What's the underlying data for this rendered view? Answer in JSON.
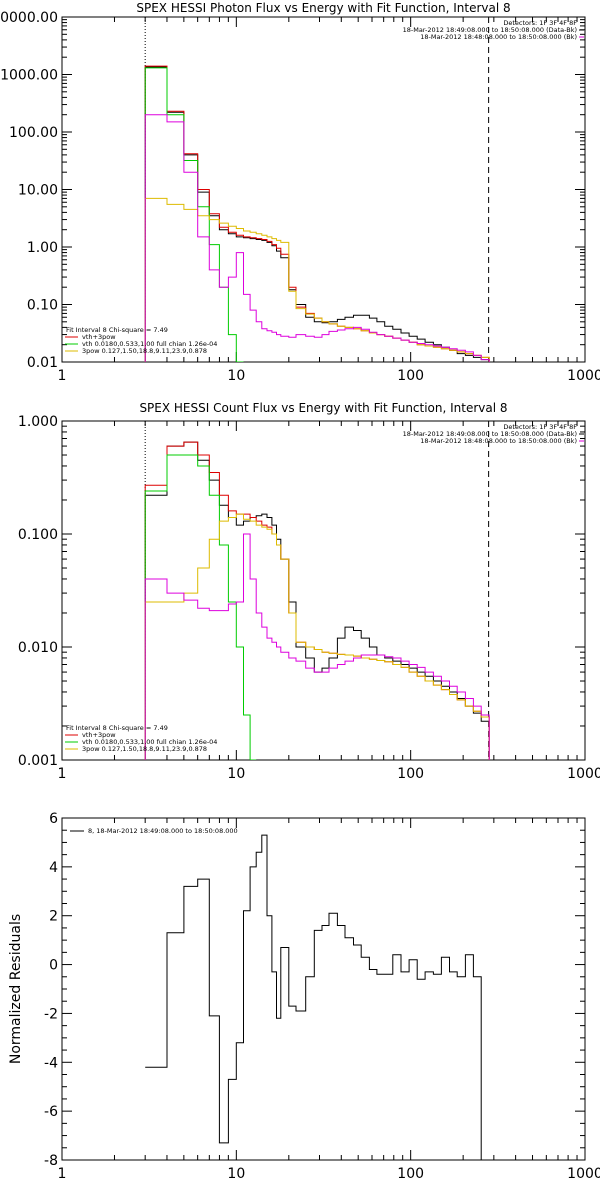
{
  "chart_data": [
    {
      "type": "line",
      "title": "SPEX HESSI Photon Flux vs Energy with Fit Function, Interval 8",
      "xlabel": "",
      "ylabel": "",
      "xscale": "log",
      "yscale": "log",
      "xlim": [
        1,
        1000
      ],
      "ylim": [
        0.01,
        10000
      ],
      "x_ticks": [
        1,
        10,
        100,
        1000
      ],
      "x_tick_labels": [
        "1",
        "10",
        "100",
        "1000"
      ],
      "y_ticks": [
        0.01,
        0.1,
        1,
        10,
        100,
        1000,
        10000
      ],
      "y_tick_labels": [
        "0.01",
        "0.10",
        "1.00",
        "10.00",
        "100.00",
        "1000.00",
        "10000.00"
      ],
      "vlines": [
        {
          "x": 3,
          "style": "dotted"
        },
        {
          "x": 280,
          "style": "dashed"
        }
      ],
      "info_lines": [
        "Detectors: 1F 3F 4F 8F",
        "18-Mar-2012 18:49:08.000 to 18:50:08.000 (Data-Bk)",
        "18-Mar-2012 18:48:08.000 to 18:50:08.000 (Bk)"
      ],
      "fit_lines": [
        "Fit Interval 8   Chi-square = 7.49",
        "vth+3pow",
        "vth 0.0180,0.533,1.00  full chian 1.26e-04",
        "3pow 0.127,1.50,18.8,9.11,23.9,0.878"
      ],
      "edges": [
        3,
        4,
        5,
        6,
        7,
        8,
        9,
        10,
        11,
        12,
        13,
        14,
        15,
        16,
        17,
        18,
        20,
        22,
        25,
        28,
        31,
        34,
        38,
        42,
        47,
        52,
        58,
        64,
        71,
        79,
        88,
        98,
        109,
        121,
        135,
        150,
        167,
        185,
        206,
        229,
        254,
        282
      ],
      "series": [
        {
          "name": "Data-Bk",
          "color": "#000000",
          "values": [
            1350,
            220,
            40,
            9,
            3.5,
            2.0,
            1.7,
            1.5,
            1.45,
            1.4,
            1.35,
            1.3,
            1.2,
            1.05,
            0.85,
            0.65,
            0.18,
            0.1,
            0.06,
            0.05,
            0.048,
            0.05,
            0.055,
            0.06,
            0.065,
            0.065,
            0.058,
            0.05,
            0.042,
            0.037,
            0.032,
            0.028,
            0.025,
            0.022,
            0.02,
            0.018,
            0.016,
            0.014,
            0.013,
            0.012,
            0.011
          ]
        },
        {
          "name": "vth+3pow",
          "color": "#dd0000",
          "values": [
            1400,
            230,
            42,
            10,
            3.8,
            2.2,
            1.8,
            1.6,
            1.5,
            1.45,
            1.4,
            1.35,
            1.25,
            1.1,
            0.95,
            0.75,
            0.2,
            0.09,
            0.07,
            0.058,
            0.05,
            0.046,
            0.042,
            0.04,
            0.038,
            0.035,
            0.032,
            0.03,
            0.028,
            0.026,
            0.024,
            0.022,
            0.02,
            0.019,
            0.018,
            0.017,
            0.016,
            0.015,
            0.014,
            0.013,
            0.012
          ]
        },
        {
          "name": "vth",
          "color": "#00cc00",
          "values": [
            1300,
            200,
            32,
            5,
            1.1,
            0.2,
            0.03,
            0.005
          ]
        },
        {
          "name": "3pow",
          "color": "#ddbb00",
          "values": [
            7,
            5.5,
            4.5,
            3.5,
            3.0,
            2.6,
            2.3,
            2.1,
            1.9,
            1.8,
            1.7,
            1.6,
            1.5,
            1.4,
            1.3,
            1.2,
            0.17,
            0.085,
            0.068,
            0.058,
            0.05,
            0.046,
            0.042,
            0.04,
            0.038,
            0.035,
            0.032,
            0.03,
            0.028,
            0.026,
            0.024,
            0.022,
            0.02,
            0.019,
            0.018,
            0.017,
            0.016,
            0.015,
            0.014,
            0.013,
            0.012
          ]
        },
        {
          "name": "Bk",
          "color": "#dd00dd",
          "values": [
            200,
            150,
            20,
            1.5,
            0.4,
            0.2,
            0.3,
            0.8,
            0.15,
            0.08,
            0.05,
            0.038,
            0.035,
            0.033,
            0.03,
            0.028,
            0.027,
            0.03,
            0.028,
            0.027,
            0.03,
            0.034,
            0.036,
            0.038,
            0.04,
            0.037,
            0.033,
            0.03,
            0.028,
            0.026,
            0.024,
            0.022,
            0.021,
            0.02,
            0.019,
            0.018,
            0.017,
            0.016,
            0.015,
            0.013,
            0.011
          ]
        }
      ]
    },
    {
      "type": "line",
      "title": "SPEX HESSI Count Flux vs Energy with Fit Function, Interval 8",
      "xlabel": "",
      "ylabel": "",
      "xscale": "log",
      "yscale": "log",
      "xlim": [
        1,
        1000
      ],
      "ylim": [
        0.001,
        1
      ],
      "x_ticks": [
        1,
        10,
        100,
        1000
      ],
      "x_tick_labels": [
        "1",
        "10",
        "100",
        "1000"
      ],
      "y_ticks": [
        0.001,
        0.01,
        0.1,
        1
      ],
      "y_tick_labels": [
        "0.001",
        "0.010",
        "0.100",
        "1.000"
      ],
      "vlines": [
        {
          "x": 3,
          "style": "dotted"
        },
        {
          "x": 280,
          "style": "dashed"
        }
      ],
      "info_lines": [
        "Detectors: 1F 3F 4F 8F",
        "18-Mar-2012 18:49:08.000 to 18:50:08.000 (Data-Bk)",
        "18-Mar-2012 18:48:08.000 to 18:50:08.000 (Bk)"
      ],
      "fit_lines": [
        "Fit Interval 8   Chi-square = 7.49",
        "vth+3pow",
        "vth 0.0180,0.533,1.00  full chian 1.26e-04",
        "3pow 0.127,1.50,18.8,9.11,23.9,0.878"
      ],
      "edges": [
        3,
        4,
        5,
        6,
        7,
        8,
        9,
        10,
        11,
        12,
        13,
        14,
        15,
        16,
        17,
        18,
        20,
        22,
        25,
        28,
        31,
        34,
        38,
        42,
        47,
        52,
        58,
        64,
        71,
        79,
        88,
        98,
        109,
        121,
        135,
        150,
        167,
        185,
        206,
        229,
        254,
        282
      ],
      "series": [
        {
          "name": "Data-Bk",
          "color": "#000000",
          "values": [
            0.22,
            0.6,
            0.65,
            0.45,
            0.3,
            0.18,
            0.14,
            0.12,
            0.13,
            0.14,
            0.145,
            0.15,
            0.14,
            0.12,
            0.09,
            0.06,
            0.025,
            0.01,
            0.008,
            0.006,
            0.0065,
            0.008,
            0.012,
            0.015,
            0.014,
            0.012,
            0.01,
            0.0085,
            0.008,
            0.0075,
            0.007,
            0.0065,
            0.006,
            0.0055,
            0.005,
            0.0045,
            0.004,
            0.0035,
            0.003,
            0.0026,
            0.0022
          ]
        },
        {
          "name": "vth+3pow",
          "color": "#dd0000",
          "values": [
            0.27,
            0.6,
            0.65,
            0.5,
            0.35,
            0.22,
            0.16,
            0.15,
            0.15,
            0.14,
            0.13,
            0.12,
            0.115,
            0.1,
            0.08,
            0.06,
            0.02,
            0.011,
            0.01,
            0.0095,
            0.009,
            0.0088,
            0.0086,
            0.0085,
            0.0083,
            0.008,
            0.0078,
            0.0076,
            0.0074,
            0.007,
            0.0066,
            0.006,
            0.0055,
            0.005,
            0.0046,
            0.0042,
            0.0038,
            0.0034,
            0.003,
            0.0027,
            0.0024
          ]
        },
        {
          "name": "vth",
          "color": "#00cc00",
          "values": [
            0.24,
            0.5,
            0.5,
            0.4,
            0.22,
            0.08,
            0.025,
            0.01,
            0.0025,
            0.0006
          ]
        },
        {
          "name": "3pow",
          "color": "#ddbb00",
          "values": [
            0.025,
            0.025,
            0.03,
            0.05,
            0.09,
            0.13,
            0.14,
            0.15,
            0.135,
            0.13,
            0.12,
            0.115,
            0.11,
            0.1,
            0.08,
            0.06,
            0.02,
            0.011,
            0.01,
            0.0095,
            0.009,
            0.0088,
            0.0086,
            0.0085,
            0.0083,
            0.008,
            0.0078,
            0.0076,
            0.0074,
            0.007,
            0.0066,
            0.006,
            0.0055,
            0.005,
            0.0046,
            0.0042,
            0.0038,
            0.0034,
            0.003,
            0.0027,
            0.0024
          ]
        },
        {
          "name": "Bk",
          "color": "#dd00dd",
          "values": [
            0.04,
            0.03,
            0.026,
            0.022,
            0.021,
            0.021,
            0.024,
            0.025,
            0.1,
            0.04,
            0.02,
            0.015,
            0.012,
            0.011,
            0.01,
            0.009,
            0.008,
            0.0075,
            0.0065,
            0.006,
            0.006,
            0.0065,
            0.007,
            0.0075,
            0.008,
            0.0085,
            0.0085,
            0.0085,
            0.0082,
            0.008,
            0.0075,
            0.007,
            0.0066,
            0.006,
            0.0055,
            0.005,
            0.0045,
            0.004,
            0.0035,
            0.003,
            0.0025
          ]
        }
      ]
    },
    {
      "type": "line",
      "title": "",
      "xlabel": "",
      "ylabel": "Normalized Residuals",
      "xscale": "log",
      "yscale": "linear",
      "xlim": [
        1,
        1000
      ],
      "ylim": [
        -8,
        6
      ],
      "x_ticks": [
        1,
        10,
        100,
        1000
      ],
      "x_tick_labels": [
        "1",
        "10",
        "100",
        "1000"
      ],
      "y_ticks": [
        -8,
        -6,
        -4,
        -2,
        0,
        2,
        4,
        6
      ],
      "y_tick_labels": [
        "-8",
        "-6",
        "-4",
        "-2",
        "0",
        "2",
        "4",
        "6"
      ],
      "legend": "8, 18-Mar-2012 18:49:08.000 to 18:50:08.000",
      "edges": [
        3,
        4,
        5,
        6,
        7,
        8,
        9,
        10,
        11,
        12,
        13,
        14,
        15,
        16,
        17,
        18,
        20,
        22,
        25,
        28,
        31,
        34,
        38,
        42,
        47,
        52,
        58,
        64,
        71,
        79,
        88,
        98,
        109,
        121,
        135,
        150,
        167,
        185,
        206,
        229,
        254,
        282
      ],
      "series": [
        {
          "name": "8, 18-Mar-2012 18:49:08.000 to 18:50:08.000",
          "color": "#000000",
          "values": [
            -4.2,
            1.3,
            3.2,
            3.5,
            -2.1,
            -7.3,
            -4.7,
            -3.2,
            2.2,
            4.0,
            4.6,
            5.3,
            2.0,
            -0.3,
            -2.2,
            0.7,
            -1.7,
            -1.9,
            -0.5,
            1.4,
            1.6,
            2.1,
            1.6,
            1.1,
            0.8,
            0.3,
            -0.2,
            -0.4,
            -0.4,
            0.4,
            -0.3,
            0.2,
            -0.6,
            -0.3,
            -0.4,
            0.3,
            -0.3,
            -0.5,
            0.4,
            -0.5,
            -8.2
          ]
        }
      ]
    }
  ]
}
